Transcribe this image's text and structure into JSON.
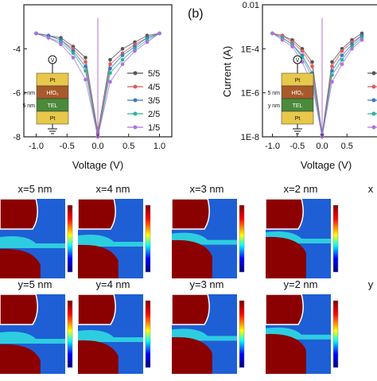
{
  "panel_b_label": "(b)",
  "chart_data": [
    {
      "type": "line",
      "panel": "a",
      "xlabel": "Voltage (V)",
      "ylabel": "",
      "xlim": [
        -1.2,
        1.2
      ],
      "ylim_log": [
        -8,
        -2
      ],
      "x_ticks": [
        "-1.0",
        "-0.5",
        "0.0",
        "0.5",
        "1.0"
      ],
      "y_ticks": [
        "-4",
        "-6",
        "-8"
      ],
      "legend_position": "right",
      "series": [
        {
          "name": "5/5",
          "color": "#555555",
          "x": [
            -1.0,
            -0.8,
            -0.6,
            -0.4,
            -0.2,
            0.0,
            0.2,
            0.4,
            0.6,
            0.8,
            1.0
          ],
          "y": [
            -3.3,
            -3.4,
            -3.5,
            -3.9,
            -4.4,
            -7.8,
            -4.5,
            -4.0,
            -3.7,
            -3.4,
            -3.3
          ]
        },
        {
          "name": "4/5",
          "color": "#e05a5a",
          "x": [
            -1.0,
            -0.8,
            -0.6,
            -0.4,
            -0.2,
            0.0,
            0.2,
            0.4,
            0.6,
            0.8,
            1.0
          ],
          "y": [
            -3.3,
            -3.4,
            -3.6,
            -4.0,
            -4.6,
            -7.9,
            -4.7,
            -4.2,
            -3.8,
            -3.5,
            -3.3
          ]
        },
        {
          "name": "3/5",
          "color": "#3a78c8",
          "x": [
            -1.0,
            -0.8,
            -0.6,
            -0.4,
            -0.2,
            0.0,
            0.2,
            0.4,
            0.6,
            0.8,
            1.0
          ],
          "y": [
            -3.3,
            -3.4,
            -3.6,
            -4.1,
            -4.8,
            -8.0,
            -4.9,
            -4.3,
            -3.9,
            -3.5,
            -3.3
          ]
        },
        {
          "name": "2/5",
          "color": "#2bb39a",
          "x": [
            -1.0,
            -0.8,
            -0.6,
            -0.4,
            -0.2,
            0.0,
            0.2,
            0.4,
            0.6,
            0.8,
            1.0
          ],
          "y": [
            -3.3,
            -3.5,
            -3.7,
            -4.2,
            -5.0,
            -8.0,
            -5.1,
            -4.5,
            -4.0,
            -3.6,
            -3.3
          ]
        },
        {
          "name": "1/5",
          "color": "#b070e0",
          "x": [
            -1.0,
            -0.8,
            -0.6,
            -0.4,
            -0.2,
            0.0,
            0.2,
            0.4,
            0.6,
            0.8,
            1.0
          ],
          "y": [
            -3.3,
            -3.5,
            -3.8,
            -4.4,
            -5.4,
            -8.0,
            -5.5,
            -4.7,
            -4.1,
            -3.7,
            -3.3
          ]
        }
      ]
    },
    {
      "type": "line",
      "panel": "b",
      "xlabel": "Voltage (V)",
      "ylabel": "Current (A)",
      "xlim": [
        -1.2,
        1.2
      ],
      "ylim_log": [
        -8,
        -2
      ],
      "x_ticks": [
        "-1.0",
        "-0.5",
        "0.0",
        "0.5"
      ],
      "y_ticks": [
        "0.01",
        "1E-4",
        "1E-6",
        "1E-8"
      ],
      "series": [
        {
          "color": "#555555",
          "x": [
            -1.0,
            -0.8,
            -0.6,
            -0.4,
            -0.2,
            0.0,
            0.2,
            0.4,
            0.6,
            0.8
          ],
          "y": [
            -3.3,
            -3.4,
            -3.6,
            -4.0,
            -4.6,
            -7.9,
            -4.6,
            -4.0,
            -3.6,
            -3.3
          ]
        },
        {
          "color": "#e05a5a",
          "x": [
            -1.0,
            -0.8,
            -0.6,
            -0.4,
            -0.2,
            0.0,
            0.2,
            0.4,
            0.6,
            0.8
          ],
          "y": [
            -3.3,
            -3.4,
            -3.7,
            -4.1,
            -4.8,
            -8.0,
            -4.8,
            -4.1,
            -3.7,
            -3.4
          ]
        },
        {
          "color": "#3a78c8",
          "x": [
            -1.0,
            -0.8,
            -0.6,
            -0.4,
            -0.2,
            0.0,
            0.2,
            0.4,
            0.6,
            0.8
          ],
          "y": [
            -3.3,
            -3.5,
            -3.8,
            -4.3,
            -5.1,
            -8.0,
            -5.0,
            -4.3,
            -3.8,
            -3.4
          ]
        },
        {
          "color": "#2bb39a",
          "x": [
            -1.0,
            -0.8,
            -0.6,
            -0.4,
            -0.2,
            0.0,
            0.2,
            0.4,
            0.6,
            0.8
          ],
          "y": [
            -3.3,
            -3.5,
            -3.8,
            -4.4,
            -5.3,
            -8.0,
            -5.2,
            -4.5,
            -3.9,
            -3.5
          ]
        },
        {
          "color": "#b070e0",
          "x": [
            -1.0,
            -0.8,
            -0.6,
            -0.4,
            -0.2,
            0.0,
            0.2,
            0.4,
            0.6,
            0.8
          ],
          "y": [
            -3.3,
            -3.6,
            -3.9,
            -4.6,
            -5.6,
            -8.0,
            -5.5,
            -4.7,
            -4.0,
            -3.6
          ]
        }
      ]
    },
    {
      "type": "heatmap",
      "panel": "simulation-maps",
      "colormap": [
        "#7f0000",
        "#ff0000",
        "#ffff00",
        "#00ffff",
        "#0000ff",
        "#00007f"
      ],
      "rows": [
        {
          "labels": [
            "x=5 nm",
            "x=4 nm",
            "x=3 nm",
            "x=2 nm",
            "x"
          ],
          "gaps": [
            0.25,
            0.2,
            0.14,
            0.1,
            0.06
          ]
        },
        {
          "labels": [
            "y=5 nm",
            "y=4 nm",
            "y=3 nm",
            "y=2 nm",
            "y"
          ],
          "gaps": [
            0.25,
            0.2,
            0.16,
            0.12,
            0.07
          ]
        }
      ]
    }
  ],
  "inset": {
    "layers": [
      {
        "label": "Pt",
        "color": "#e8c84a"
      },
      {
        "label": "HfO₂",
        "color": "#a85a2a"
      },
      {
        "label": "TEL",
        "color": "#4a8a3a"
      },
      {
        "label": "Pt",
        "color": "#e8c84a"
      }
    ],
    "meter_symbol": "V",
    "side_labels_a": [
      "x nm",
      "5 nm"
    ],
    "side_labels_b": [
      "5 nm",
      "y nm"
    ]
  }
}
